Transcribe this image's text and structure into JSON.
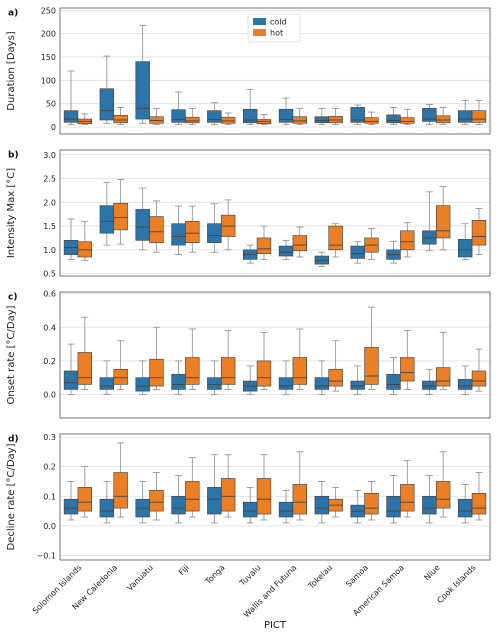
{
  "colors": {
    "cold": "#2d74a8",
    "hot": "#ea7f26",
    "grid": "#dedede",
    "axis": "#555555",
    "whisker": "#8a8a8a",
    "median": "#444444"
  },
  "chart_data": {
    "type": "box",
    "xlabel": "PICT",
    "categories": [
      "Solomon Islands",
      "New Caledonia",
      "Vanuatu",
      "Fiji",
      "Tonga",
      "Tuvalu",
      "Wallis and Futuna",
      "Tokelau",
      "Samoa",
      "American Samoa",
      "Niue",
      "Cook Islands"
    ],
    "legend": {
      "position": "top-center",
      "entries": [
        "cold",
        "hot"
      ]
    },
    "grid": true,
    "panels": [
      {
        "label": "a)",
        "ylabel": "Duration [Days]",
        "ylim": [
          -15,
          255
        ],
        "yticks": [
          0,
          50,
          100,
          150,
          200,
          250
        ],
        "ytick_labels": [
          "0",
          "50",
          "100",
          "150",
          "200",
          "250"
        ],
        "series": [
          {
            "name": "cold",
            "boxes": [
              [
                5,
                10,
                17,
                35,
                120
              ],
              [
                8,
                15,
                35,
                82,
                152
              ],
              [
                8,
                17,
                40,
                140,
                218
              ],
              [
                5,
                10,
                16,
                37,
                75
              ],
              [
                5,
                10,
                16,
                35,
                52
              ],
              [
                5,
                9,
                15,
                38,
                80
              ],
              [
                5,
                10,
                16,
                38,
                62
              ],
              [
                5,
                9,
                14,
                22,
                40
              ],
              [
                5,
                10,
                15,
                42,
                47
              ],
              [
                5,
                9,
                14,
                26,
                42
              ],
              [
                5,
                12,
                17,
                40,
                48
              ],
              [
                5,
                10,
                17,
                35,
                57
              ]
            ]
          },
          {
            "name": "hot",
            "boxes": [
              [
                5,
                7,
                12,
                17,
                28
              ],
              [
                5,
                9,
                15,
                25,
                42
              ],
              [
                5,
                8,
                14,
                22,
                40
              ],
              [
                5,
                9,
                13,
                21,
                40
              ],
              [
                5,
                8,
                13,
                21,
                30
              ],
              [
                5,
                7,
                12,
                16,
                27
              ],
              [
                5,
                8,
                13,
                22,
                40
              ],
              [
                5,
                9,
                15,
                23,
                40
              ],
              [
                5,
                8,
                12,
                20,
                32
              ],
              [
                5,
                8,
                12,
                20,
                38
              ],
              [
                5,
                9,
                15,
                24,
                42
              ],
              [
                5,
                10,
                17,
                35,
                57
              ]
            ]
          }
        ]
      },
      {
        "label": "b)",
        "ylabel": "Intensity Max [°C]",
        "ylim": [
          0.45,
          3.1
        ],
        "yticks": [
          0.5,
          1.0,
          1.5,
          2.0,
          2.5,
          3.0
        ],
        "ytick_labels": [
          "0.5",
          "1.0",
          "1.5",
          "2.0",
          "2.5",
          "3.0"
        ],
        "series": [
          {
            "name": "cold",
            "boxes": [
              [
                0.8,
                0.9,
                1.05,
                1.2,
                1.65
              ],
              [
                1.1,
                1.35,
                1.6,
                1.93,
                2.42
              ],
              [
                1.0,
                1.2,
                1.48,
                1.85,
                2.3
              ],
              [
                0.9,
                1.1,
                1.28,
                1.55,
                1.92
              ],
              [
                0.95,
                1.15,
                1.3,
                1.55,
                1.97
              ],
              [
                0.72,
                0.8,
                0.9,
                1.0,
                1.1
              ],
              [
                0.8,
                0.87,
                0.95,
                1.08,
                1.2
              ],
              [
                0.65,
                0.7,
                0.78,
                0.87,
                0.95
              ],
              [
                0.72,
                0.82,
                0.92,
                1.08,
                1.17
              ],
              [
                0.72,
                0.8,
                0.9,
                1.0,
                1.18
              ],
              [
                0.98,
                1.12,
                1.25,
                1.4,
                2.22
              ],
              [
                0.8,
                0.85,
                1.0,
                1.22,
                1.55
              ]
            ]
          },
          {
            "name": "hot",
            "boxes": [
              [
                0.78,
                0.85,
                1.0,
                1.17,
                1.6
              ],
              [
                1.12,
                1.42,
                1.68,
                1.98,
                2.48
              ],
              [
                0.95,
                1.15,
                1.38,
                1.7,
                2.03
              ],
              [
                0.95,
                1.15,
                1.35,
                1.6,
                1.92
              ],
              [
                1.0,
                1.28,
                1.5,
                1.73,
                2.05
              ],
              [
                0.8,
                0.92,
                1.02,
                1.25,
                1.5
              ],
              [
                0.85,
                0.98,
                1.1,
                1.3,
                1.48
              ],
              [
                0.85,
                1.0,
                1.1,
                1.5,
                1.55
              ],
              [
                0.8,
                0.95,
                1.1,
                1.25,
                1.45
              ],
              [
                0.85,
                1.0,
                1.17,
                1.4,
                1.57
              ],
              [
                1.0,
                1.25,
                1.4,
                1.93,
                2.33
              ],
              [
                0.9,
                1.1,
                1.28,
                1.62,
                1.87
              ]
            ]
          }
        ]
      },
      {
        "label": "c)",
        "ylabel": "Onset rate [°C/Day]",
        "ylim": [
          -0.14,
          0.61
        ],
        "yticks": [
          0.0,
          0.2,
          0.4,
          0.6
        ],
        "ytick_labels": [
          "0.0",
          "0.2",
          "0.4",
          "0.6"
        ],
        "series": [
          {
            "name": "cold",
            "boxes": [
              [
                0.0,
                0.03,
                0.07,
                0.14,
                0.3
              ],
              [
                0.0,
                0.03,
                0.05,
                0.1,
                0.2
              ],
              [
                0.0,
                0.02,
                0.05,
                0.1,
                0.2
              ],
              [
                0.0,
                0.03,
                0.06,
                0.12,
                0.2
              ],
              [
                0.0,
                0.03,
                0.06,
                0.1,
                0.2
              ],
              [
                0.0,
                0.02,
                0.05,
                0.08,
                0.17
              ],
              [
                0.0,
                0.03,
                0.05,
                0.1,
                0.2
              ],
              [
                0.0,
                0.03,
                0.05,
                0.1,
                0.2
              ],
              [
                0.0,
                0.03,
                0.05,
                0.08,
                0.17
              ],
              [
                0.0,
                0.03,
                0.06,
                0.12,
                0.22
              ],
              [
                0.0,
                0.03,
                0.05,
                0.08,
                0.15
              ],
              [
                0.0,
                0.03,
                0.05,
                0.09,
                0.17
              ]
            ]
          },
          {
            "name": "hot",
            "boxes": [
              [
                0.03,
                0.06,
                0.1,
                0.25,
                0.46
              ],
              [
                0.03,
                0.06,
                0.1,
                0.15,
                0.32
              ],
              [
                0.03,
                0.05,
                0.1,
                0.21,
                0.4
              ],
              [
                0.03,
                0.06,
                0.1,
                0.22,
                0.39
              ],
              [
                0.03,
                0.06,
                0.1,
                0.22,
                0.38
              ],
              [
                0.03,
                0.05,
                0.1,
                0.2,
                0.37
              ],
              [
                0.03,
                0.06,
                0.1,
                0.22,
                0.39
              ],
              [
                0.02,
                0.05,
                0.08,
                0.15,
                0.32
              ],
              [
                0.03,
                0.06,
                0.11,
                0.28,
                0.52
              ],
              [
                0.03,
                0.08,
                0.13,
                0.22,
                0.38
              ],
              [
                0.03,
                0.05,
                0.08,
                0.16,
                0.37
              ],
              [
                0.02,
                0.05,
                0.08,
                0.14,
                0.27
              ]
            ]
          }
        ]
      },
      {
        "label": "d)",
        "ylabel": "Decline rate [°C/Day]",
        "ylim": [
          -0.115,
          0.31
        ],
        "yticks": [
          -0.1,
          0.0,
          0.1,
          0.2,
          0.3
        ],
        "ytick_labels": [
          "−0.1",
          "0.0",
          "0.1",
          "0.2",
          "0.3"
        ],
        "series": [
          {
            "name": "cold",
            "boxes": [
              [
                0.02,
                0.04,
                0.06,
                0.09,
                0.15
              ],
              [
                0.01,
                0.03,
                0.05,
                0.09,
                0.15
              ],
              [
                0.01,
                0.03,
                0.06,
                0.09,
                0.15
              ],
              [
                0.01,
                0.04,
                0.06,
                0.1,
                0.17
              ],
              [
                0.01,
                0.04,
                0.09,
                0.13,
                0.24
              ],
              [
                0.01,
                0.03,
                0.05,
                0.08,
                0.13
              ],
              [
                0.01,
                0.03,
                0.05,
                0.08,
                0.12
              ],
              [
                0.01,
                0.04,
                0.06,
                0.1,
                0.15
              ],
              [
                0.01,
                0.03,
                0.05,
                0.07,
                0.12
              ],
              [
                0.01,
                0.03,
                0.05,
                0.1,
                0.17
              ],
              [
                0.01,
                0.04,
                0.06,
                0.1,
                0.17
              ],
              [
                0.01,
                0.03,
                0.05,
                0.09,
                0.14
              ]
            ]
          },
          {
            "name": "hot",
            "boxes": [
              [
                0.03,
                0.05,
                0.08,
                0.13,
                0.2
              ],
              [
                0.03,
                0.06,
                0.1,
                0.18,
                0.28
              ],
              [
                0.02,
                0.05,
                0.08,
                0.12,
                0.18
              ],
              [
                0.03,
                0.05,
                0.09,
                0.15,
                0.23
              ],
              [
                0.03,
                0.05,
                0.1,
                0.16,
                0.24
              ],
              [
                0.02,
                0.04,
                0.09,
                0.16,
                0.24
              ],
              [
                0.02,
                0.04,
                0.08,
                0.14,
                0.25
              ],
              [
                0.03,
                0.05,
                0.07,
                0.09,
                0.13
              ],
              [
                0.02,
                0.04,
                0.06,
                0.11,
                0.15
              ],
              [
                0.03,
                0.05,
                0.08,
                0.14,
                0.22
              ],
              [
                0.03,
                0.06,
                0.09,
                0.15,
                0.25
              ],
              [
                0.02,
                0.04,
                0.06,
                0.11,
                0.18
              ]
            ]
          }
        ]
      }
    ]
  }
}
